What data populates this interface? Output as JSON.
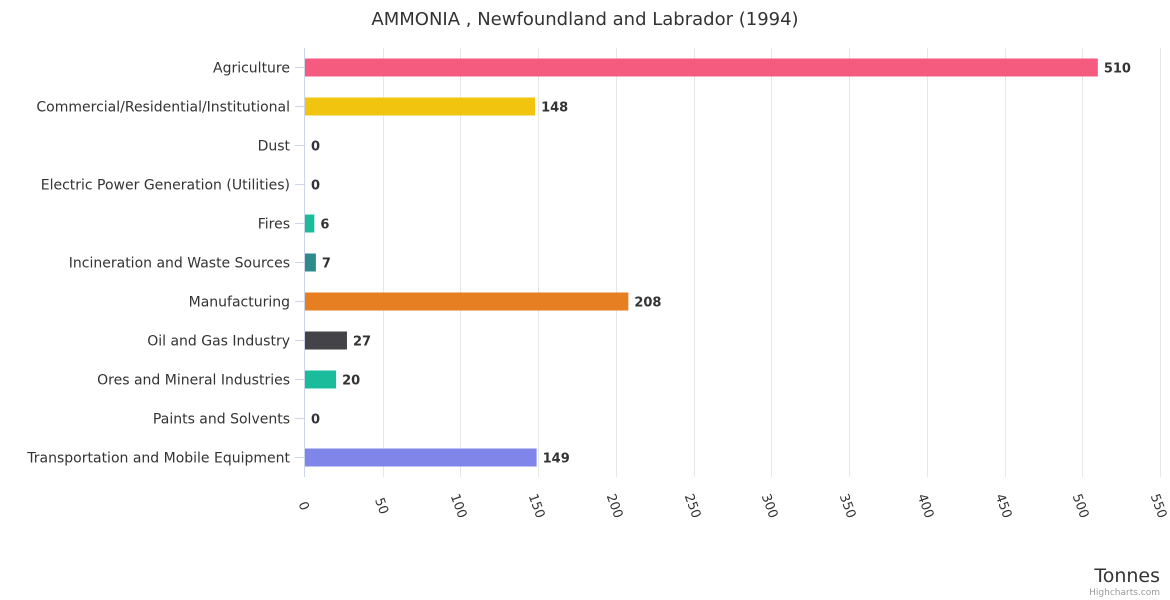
{
  "chart_data": {
    "type": "bar",
    "orientation": "horizontal",
    "title": "AMMONIA , Newfoundland and Labrador (1994)",
    "xlabel": "",
    "ylabel": "Tonnes",
    "categories": [
      "Agriculture",
      "Commercial/Residential/Institutional",
      "Dust",
      "Electric Power Generation (Utilities)",
      "Fires",
      "Incineration and Waste Sources",
      "Manufacturing",
      "Oil and Gas Industry",
      "Ores and Mineral Industries",
      "Paints and Solvents",
      "Transportation and Mobile Equipment"
    ],
    "values": [
      510,
      148,
      0,
      0,
      6,
      7,
      208,
      27,
      20,
      0,
      149
    ],
    "data_labels": [
      "510",
      "148",
      "0",
      "0",
      "6",
      "7",
      "208",
      "27",
      "20",
      "0",
      "149"
    ],
    "colors": [
      "#f45b7e",
      "#f1c40f",
      "#2ecc71",
      "#3498db",
      "#1abc9c",
      "#2e8b8b",
      "#e67e22",
      "#434348",
      "#1abc9c",
      "#9b59b6",
      "#8085e9"
    ],
    "value_axis": {
      "min": 0,
      "max": 550,
      "tick_interval": 50,
      "tick_labels": [
        "0",
        "50",
        "100",
        "150",
        "200",
        "250",
        "300",
        "350",
        "400",
        "450",
        "500",
        "550"
      ],
      "grid": true
    },
    "legend": "none",
    "credits": "Highcharts.com"
  }
}
